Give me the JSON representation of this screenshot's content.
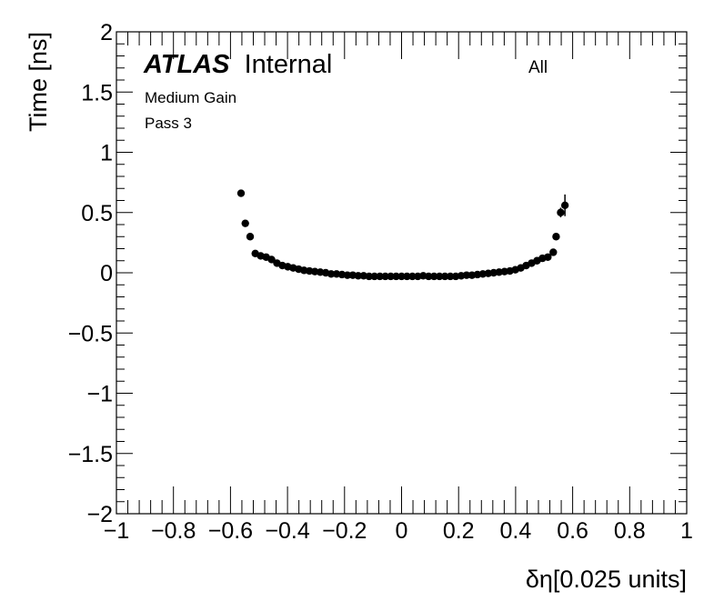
{
  "chart_data": {
    "type": "scatter",
    "title": "",
    "xlabel": "δη[0.025 units]",
    "ylabel": "Time [ns]",
    "xlim": [
      -1,
      1
    ],
    "ylim": [
      -2,
      2
    ],
    "xticks": [
      -1,
      -0.8,
      -0.6,
      -0.4,
      -0.2,
      0,
      0.2,
      0.4,
      0.6,
      0.8,
      1
    ],
    "xtick_labels": [
      "−1",
      "−0.8",
      "−0.6",
      "−0.4",
      "−0.2",
      "0",
      "0.2",
      "0.4",
      "0.6",
      "0.8",
      "1"
    ],
    "yticks": [
      -2,
      -1.5,
      -1,
      -0.5,
      0,
      0.5,
      1,
      1.5,
      2
    ],
    "ytick_labels": [
      "−2",
      "−1.5",
      "−1",
      "−0.5",
      "0",
      "0.5",
      "1",
      "1.5",
      "2"
    ],
    "grid": false,
    "legend": "none",
    "marker_color": "#000000",
    "annotations": {
      "atlas": "ATLAS",
      "internal": "Internal",
      "selection": "All",
      "gain": "Medium Gain",
      "pass": "Pass 3"
    },
    "points": [
      {
        "x": -0.563,
        "y": 0.66,
        "err": 0.02
      },
      {
        "x": -0.548,
        "y": 0.41,
        "err": 0.02
      },
      {
        "x": -0.531,
        "y": 0.3,
        "err": 0.015
      },
      {
        "x": -0.513,
        "y": 0.16,
        "err": 0.01
      },
      {
        "x": -0.494,
        "y": 0.14,
        "err": 0.01
      },
      {
        "x": -0.475,
        "y": 0.13,
        "err": 0.01
      },
      {
        "x": -0.456,
        "y": 0.11,
        "err": 0.01
      },
      {
        "x": -0.437,
        "y": 0.08,
        "err": 0.01
      },
      {
        "x": -0.418,
        "y": 0.06,
        "err": 0.01
      },
      {
        "x": -0.399,
        "y": 0.05,
        "err": 0.01
      },
      {
        "x": -0.38,
        "y": 0.04,
        "err": 0.01
      },
      {
        "x": -0.361,
        "y": 0.03,
        "err": 0.01
      },
      {
        "x": -0.342,
        "y": 0.02,
        "err": 0.01
      },
      {
        "x": -0.323,
        "y": 0.015,
        "err": 0.01
      },
      {
        "x": -0.304,
        "y": 0.01,
        "err": 0.01
      },
      {
        "x": -0.285,
        "y": 0.005,
        "err": 0.01
      },
      {
        "x": -0.266,
        "y": 0.0,
        "err": 0.01
      },
      {
        "x": -0.247,
        "y": -0.01,
        "err": 0.01
      },
      {
        "x": -0.228,
        "y": -0.01,
        "err": 0.01
      },
      {
        "x": -0.209,
        "y": -0.015,
        "err": 0.01
      },
      {
        "x": -0.19,
        "y": -0.02,
        "err": 0.01
      },
      {
        "x": -0.171,
        "y": -0.02,
        "err": 0.01
      },
      {
        "x": -0.152,
        "y": -0.025,
        "err": 0.01
      },
      {
        "x": -0.133,
        "y": -0.025,
        "err": 0.01
      },
      {
        "x": -0.114,
        "y": -0.03,
        "err": 0.01
      },
      {
        "x": -0.095,
        "y": -0.03,
        "err": 0.01
      },
      {
        "x": -0.076,
        "y": -0.03,
        "err": 0.01
      },
      {
        "x": -0.057,
        "y": -0.03,
        "err": 0.01
      },
      {
        "x": -0.038,
        "y": -0.03,
        "err": 0.01
      },
      {
        "x": -0.019,
        "y": -0.03,
        "err": 0.01
      },
      {
        "x": 0.0,
        "y": -0.03,
        "err": 0.01
      },
      {
        "x": 0.019,
        "y": -0.03,
        "err": 0.01
      },
      {
        "x": 0.038,
        "y": -0.03,
        "err": 0.01
      },
      {
        "x": 0.057,
        "y": -0.03,
        "err": 0.01
      },
      {
        "x": 0.076,
        "y": -0.025,
        "err": 0.01
      },
      {
        "x": 0.095,
        "y": -0.03,
        "err": 0.01
      },
      {
        "x": 0.114,
        "y": -0.03,
        "err": 0.01
      },
      {
        "x": 0.133,
        "y": -0.03,
        "err": 0.01
      },
      {
        "x": 0.152,
        "y": -0.03,
        "err": 0.01
      },
      {
        "x": 0.171,
        "y": -0.03,
        "err": 0.01
      },
      {
        "x": 0.19,
        "y": -0.03,
        "err": 0.01
      },
      {
        "x": 0.209,
        "y": -0.025,
        "err": 0.01
      },
      {
        "x": 0.228,
        "y": -0.02,
        "err": 0.01
      },
      {
        "x": 0.247,
        "y": -0.02,
        "err": 0.01
      },
      {
        "x": 0.266,
        "y": -0.015,
        "err": 0.01
      },
      {
        "x": 0.285,
        "y": -0.01,
        "err": 0.01
      },
      {
        "x": 0.304,
        "y": -0.005,
        "err": 0.01
      },
      {
        "x": 0.323,
        "y": 0.0,
        "err": 0.01
      },
      {
        "x": 0.342,
        "y": 0.005,
        "err": 0.01
      },
      {
        "x": 0.361,
        "y": 0.01,
        "err": 0.01
      },
      {
        "x": 0.38,
        "y": 0.015,
        "err": 0.01
      },
      {
        "x": 0.399,
        "y": 0.025,
        "err": 0.01
      },
      {
        "x": 0.418,
        "y": 0.04,
        "err": 0.01
      },
      {
        "x": 0.437,
        "y": 0.06,
        "err": 0.01
      },
      {
        "x": 0.456,
        "y": 0.08,
        "err": 0.01
      },
      {
        "x": 0.475,
        "y": 0.1,
        "err": 0.01
      },
      {
        "x": 0.494,
        "y": 0.12,
        "err": 0.01
      },
      {
        "x": 0.513,
        "y": 0.13,
        "err": 0.01
      },
      {
        "x": 0.532,
        "y": 0.17,
        "err": 0.015
      },
      {
        "x": 0.542,
        "y": 0.3,
        "err": 0.02
      },
      {
        "x": 0.558,
        "y": 0.5,
        "err": 0.04
      },
      {
        "x": 0.573,
        "y": 0.56,
        "err": 0.09
      }
    ]
  }
}
